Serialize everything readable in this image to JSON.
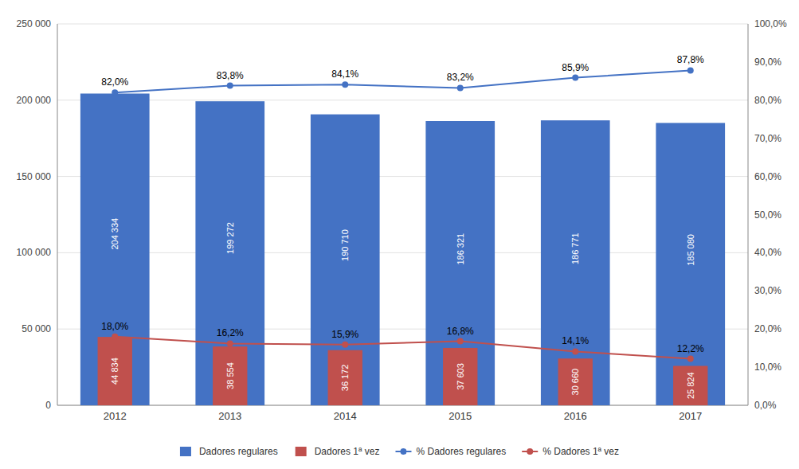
{
  "chart_data": {
    "type": "bar",
    "categories": [
      "2012",
      "2013",
      "2014",
      "2015",
      "2016",
      "2017"
    ],
    "series": [
      {
        "name": "Dadores regulares",
        "type": "bar",
        "color": "#4472C4",
        "values": [
          204334,
          199272,
          190710,
          186321,
          186771,
          185080
        ],
        "value_labels": [
          "204 334",
          "199 272",
          "190 710",
          "186 321",
          "186 771",
          "185 080"
        ]
      },
      {
        "name": "Dadores 1ª vez",
        "type": "bar",
        "color": "#C0504D",
        "values": [
          44834,
          38554,
          36172,
          37603,
          30660,
          25824
        ],
        "value_labels": [
          "44 834",
          "38 554",
          "36 172",
          "37 603",
          "30 660",
          "25 824"
        ]
      },
      {
        "name": "% Dadores regulares",
        "type": "line",
        "axis": "y2",
        "color": "#4472C4",
        "marker": "circle",
        "values": [
          0.82,
          0.838,
          0.841,
          0.832,
          0.859,
          0.878
        ],
        "value_labels": [
          "82,0%",
          "83,8%",
          "84,1%",
          "83,2%",
          "85,9%",
          "87,8%"
        ]
      },
      {
        "name": "% Dadores 1ª vez",
        "type": "line",
        "axis": "y2",
        "color": "#C0504D",
        "marker": "circle",
        "values": [
          0.18,
          0.162,
          0.159,
          0.168,
          0.141,
          0.122
        ],
        "value_labels": [
          "18,0%",
          "16,2%",
          "15,9%",
          "16,8%",
          "14,1%",
          "12,2%"
        ]
      }
    ],
    "ylim": [
      0,
      250000
    ],
    "yticks": [
      0,
      {
        "value": 50000,
        "label": "50 000"
      },
      {
        "value": 100000,
        "label": "100 000"
      },
      {
        "value": 150000,
        "label": "150 000"
      },
      {
        "value": 200000,
        "label": "200 000"
      },
      {
        "value": 250000,
        "label": "250 000"
      }
    ],
    "y2lim": [
      0.0,
      1.0
    ],
    "y2ticks": [
      {
        "value": 0.0,
        "label": "0,0%"
      },
      {
        "value": 0.1,
        "label": "10,0%"
      },
      {
        "value": 0.2,
        "label": "20,0%"
      },
      {
        "value": 0.3,
        "label": "30,0%"
      },
      {
        "value": 0.4,
        "label": "40,0%"
      },
      {
        "value": 0.5,
        "label": "50,0%"
      },
      {
        "value": 0.6,
        "label": "60,0%"
      },
      {
        "value": 0.7,
        "label": "70,0%"
      },
      {
        "value": 0.8,
        "label": "80,0%"
      },
      {
        "value": 0.9,
        "label": "90,0%"
      },
      {
        "value": 1.0,
        "label": "100,0%"
      }
    ],
    "grid": true,
    "data_labels": true,
    "legend": "bottom"
  }
}
